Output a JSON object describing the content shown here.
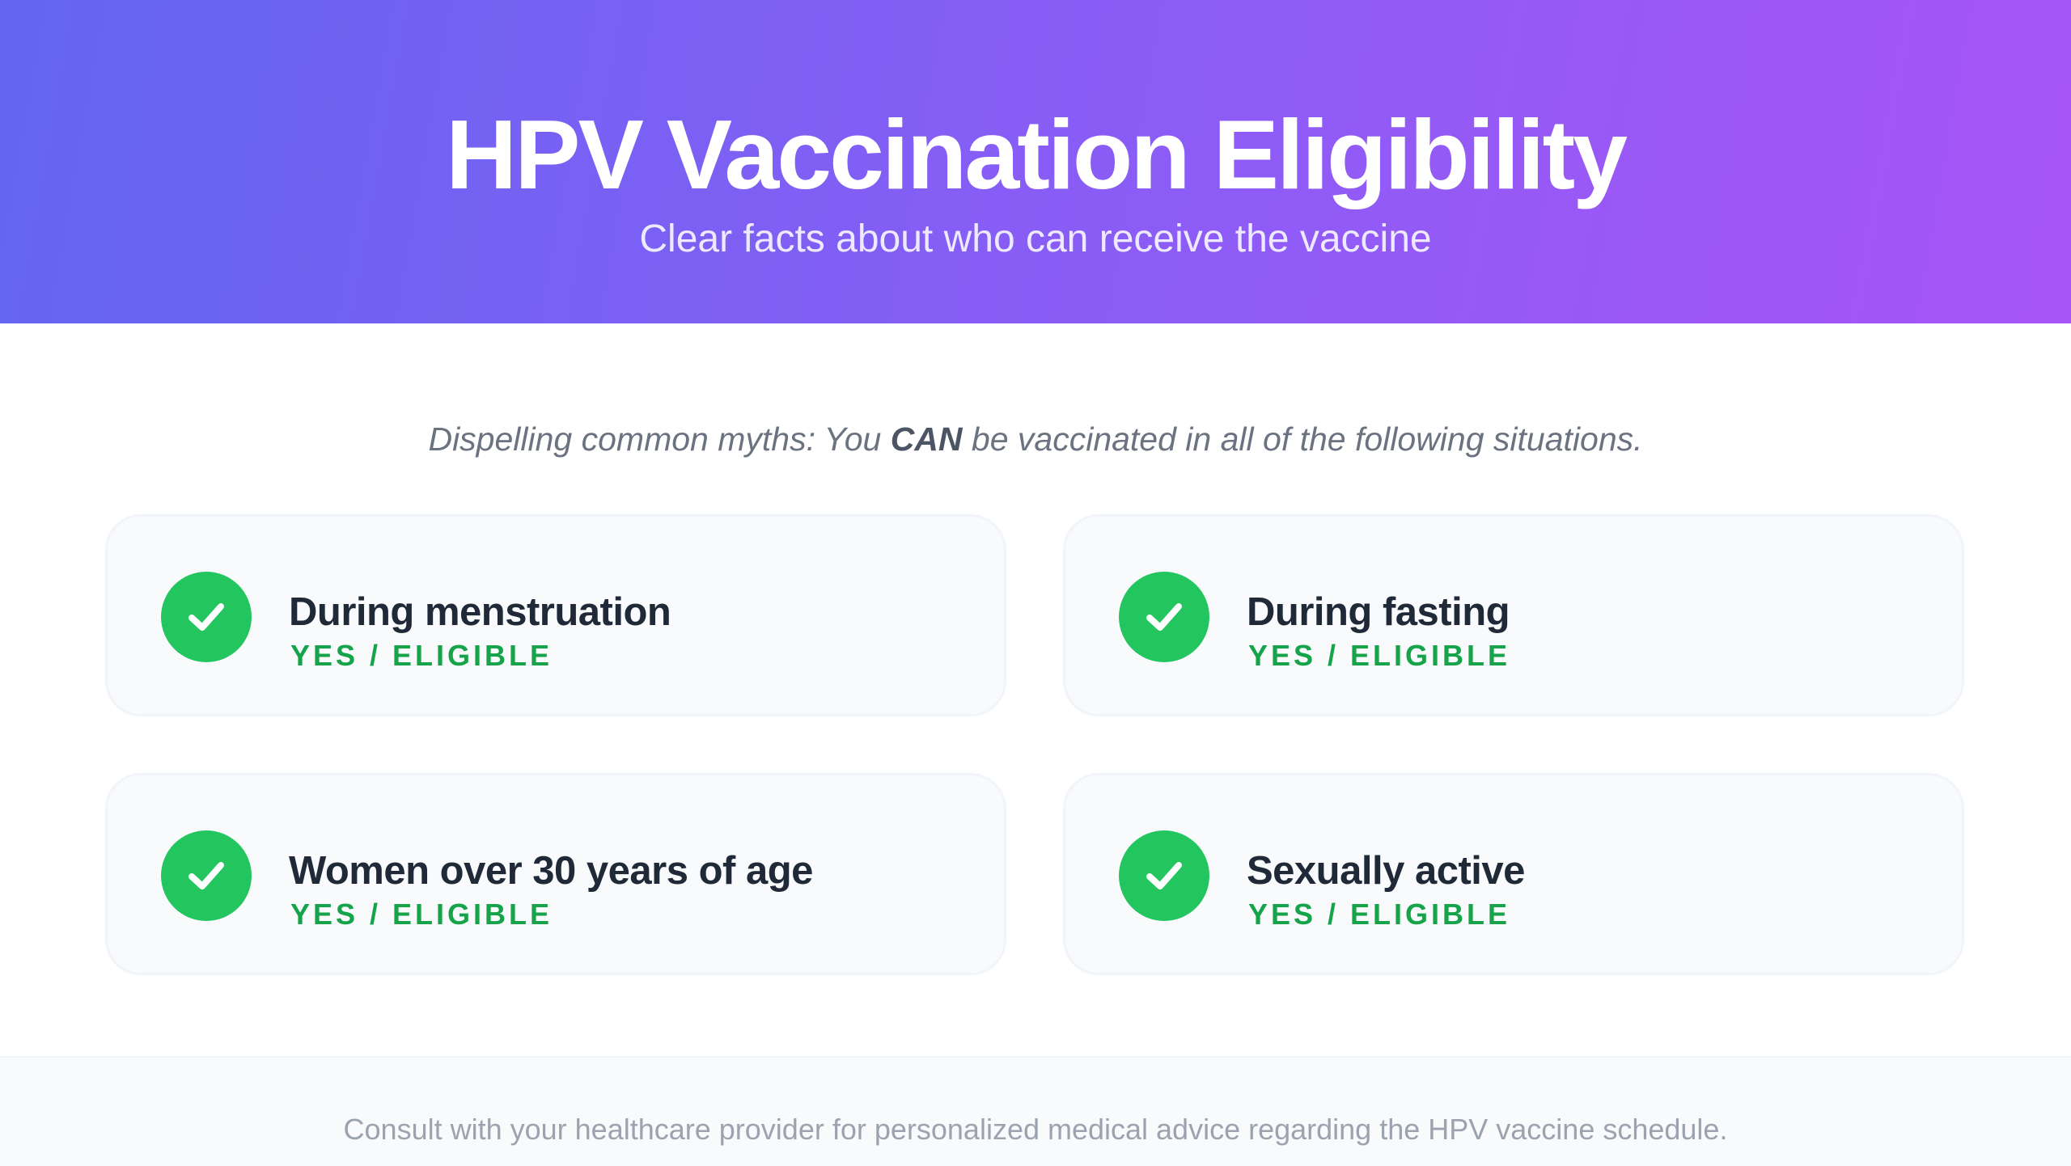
{
  "header": {
    "title": "HPV Vaccination Eligibility",
    "subtitle": "Clear facts about who can receive the vaccine"
  },
  "intro": {
    "before": "Dispelling common myths: You ",
    "emphasis": "CAN",
    "after": " be vaccinated in all of the following situations."
  },
  "cards": [
    {
      "title": "During menstruation",
      "status": "YES / ELIGIBLE",
      "icon": "check-circle-icon"
    },
    {
      "title": "During fasting",
      "status": "YES / ELIGIBLE",
      "icon": "check-circle-icon"
    },
    {
      "title": "Women over 30 years of age",
      "status": "YES / ELIGIBLE",
      "icon": "check-circle-icon"
    },
    {
      "title": "Sexually active",
      "status": "YES / ELIGIBLE",
      "icon": "check-circle-icon"
    }
  ],
  "footer": {
    "text": "Consult with your healthcare provider for personalized medical advice regarding the HPV vaccine schedule."
  },
  "colors": {
    "gradient_start": "#6366f1",
    "gradient_end": "#a855f7",
    "success": "#22c55e",
    "success_text": "#16a34a"
  }
}
